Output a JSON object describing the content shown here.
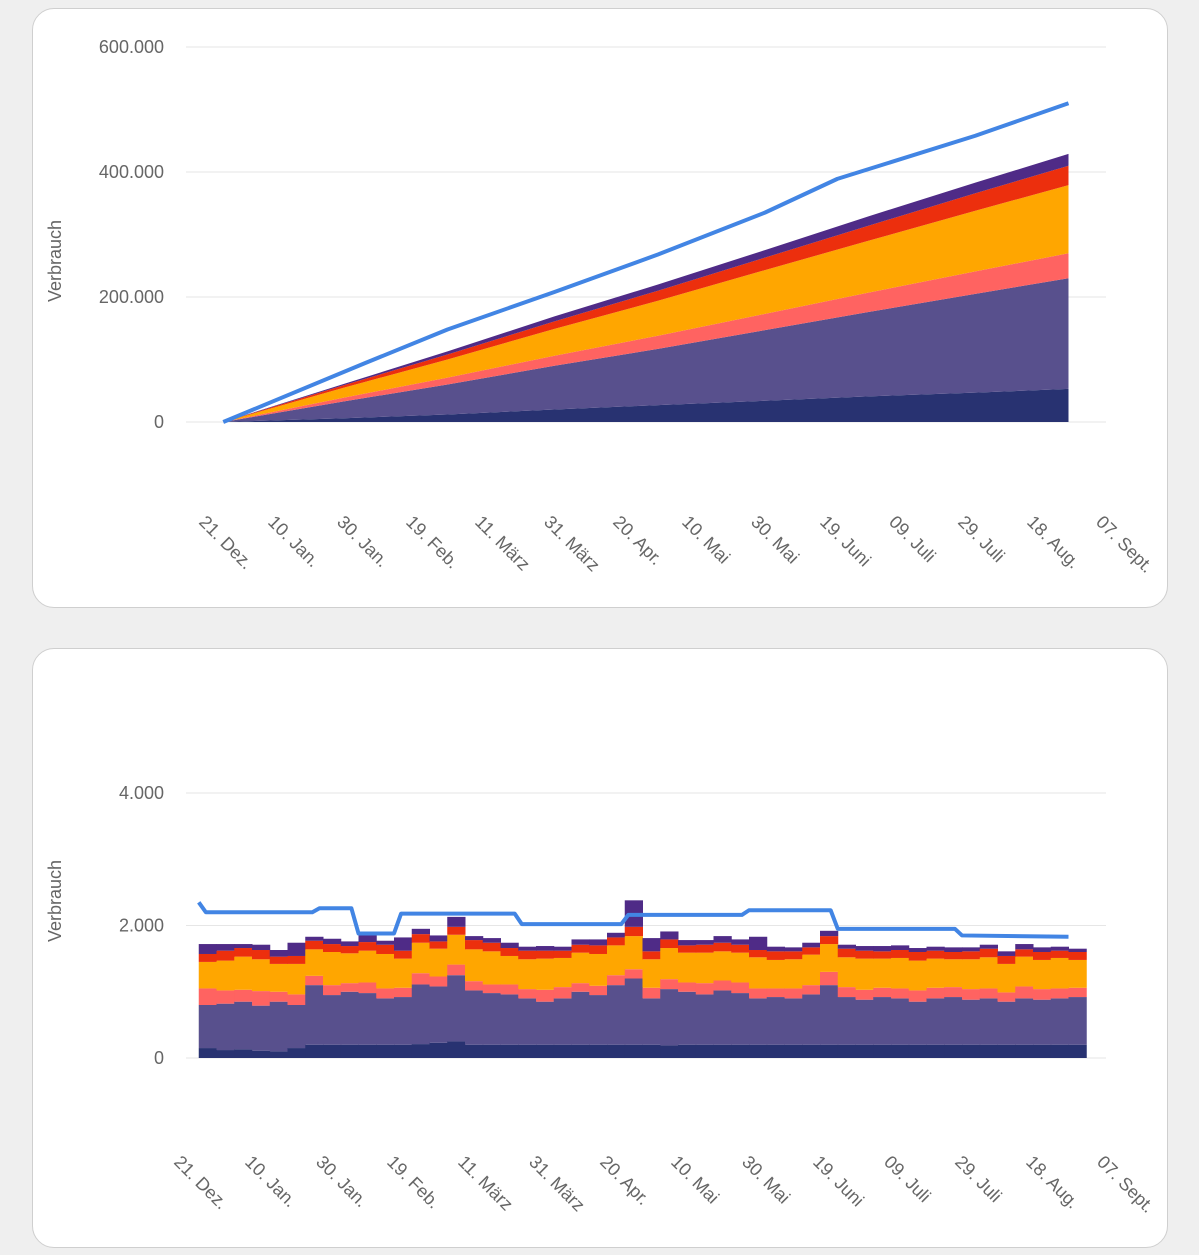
{
  "colors": {
    "navy": "#283271",
    "slate": "#58508d",
    "pink": "#ff6361",
    "orange": "#ffa600",
    "red": "#ec2f0d",
    "purple": "#4f2b87",
    "line": "#4285e4"
  },
  "chart_data": [
    {
      "type": "area",
      "stacked": true,
      "ylabel": "Verbrauch",
      "ylim": [
        0,
        600000
      ],
      "yticks": [
        0,
        200000,
        400000,
        600000
      ],
      "ytick_labels": [
        "0",
        "200.000",
        "400.000",
        "600.000"
      ],
      "xlim": [
        "2020-12-21",
        "2021-09-07"
      ],
      "xtick_labels": [
        "21. Dez.",
        "10. Jan.",
        "30. Jan.",
        "19. Feb.",
        "11. März",
        "31. März",
        "20. Apr.",
        "10. Mai",
        "30. Mai",
        "19. Juni",
        "09. Juli",
        "29. Juli",
        "18. Aug.",
        "07. Sept."
      ],
      "grid": true,
      "x": [
        "2020-12-26",
        "2021-01-30",
        "2021-03-01",
        "2021-04-01",
        "2021-05-01",
        "2021-06-01",
        "2021-07-01",
        "2021-08-01",
        "2021-08-28"
      ],
      "series": [
        {
          "color": "navy",
          "values": [
            0,
            6000,
            12000,
            20000,
            27000,
            34000,
            41000,
            47000,
            53000
          ]
        },
        {
          "color": "slate",
          "values": [
            0,
            27000,
            48000,
            70000,
            90000,
            113000,
            135000,
            158000,
            177000
          ]
        },
        {
          "color": "pink",
          "values": [
            0,
            6000,
            11000,
            16000,
            21000,
            26000,
            31000,
            36000,
            40000
          ]
        },
        {
          "color": "orange",
          "values": [
            0,
            16000,
            29000,
            43000,
            56000,
            70000,
            83000,
            97000,
            109000
          ]
        },
        {
          "color": "red",
          "values": [
            0,
            4000,
            8000,
            12000,
            16000,
            20000,
            24000,
            28000,
            31000
          ]
        },
        {
          "color": "purple",
          "values": [
            0,
            2000,
            5000,
            8000,
            10000,
            12000,
            15000,
            17000,
            19000
          ]
        }
      ],
      "line": {
        "color": "line",
        "x": [
          "2020-12-26",
          "2021-02-05",
          "2021-03-01",
          "2021-04-01",
          "2021-05-01",
          "2021-06-01",
          "2021-06-22",
          "2021-08-01",
          "2021-08-28"
        ],
        "values": [
          0,
          94000,
          148000,
          208000,
          268000,
          335000,
          389000,
          458000,
          510000
        ]
      }
    },
    {
      "type": "bar",
      "stacked": true,
      "ylabel": "Verbrauch",
      "ylim": [
        -800,
        4800
      ],
      "yticks": [
        0,
        2000,
        4000
      ],
      "ytick_labels": [
        "0",
        "2.000",
        "4.000"
      ],
      "xlim": [
        "2020-12-21",
        "2021-09-07"
      ],
      "xtick_labels": [
        "21. Dez.",
        "10. Jan.",
        "30. Jan.",
        "19. Feb.",
        "11. März",
        "31. März",
        "20. Apr.",
        "10. Mai",
        "30. Mai",
        "19. Juni",
        "09. Juli",
        "29. Juli",
        "18. Aug.",
        "07. Sept."
      ],
      "grid": true,
      "start": "2020-12-26",
      "bin_days": 5,
      "series": [
        {
          "color": "navy",
          "values": [
            150,
            120,
            130,
            110,
            100,
            150,
            200,
            200,
            200,
            200,
            200,
            200,
            210,
            230,
            250,
            200,
            200,
            200,
            200,
            200,
            200,
            200,
            200,
            200,
            200,
            200,
            190,
            200,
            200,
            200,
            200,
            200,
            200,
            200,
            200,
            200,
            200,
            200,
            200,
            200,
            200,
            200,
            200,
            200,
            200,
            200,
            200,
            200,
            200,
            200
          ]
        },
        {
          "color": "slate",
          "values": [
            650,
            700,
            720,
            680,
            750,
            650,
            900,
            750,
            800,
            780,
            700,
            720,
            900,
            850,
            1000,
            820,
            780,
            760,
            700,
            650,
            700,
            800,
            750,
            900,
            1000,
            700,
            850,
            800,
            760,
            820,
            780,
            700,
            720,
            700,
            760,
            900,
            720,
            680,
            720,
            700,
            650,
            700,
            720,
            680,
            700,
            650,
            700,
            680,
            700,
            720
          ]
        },
        {
          "color": "pink",
          "values": [
            250,
            200,
            180,
            220,
            150,
            160,
            140,
            150,
            130,
            160,
            150,
            140,
            170,
            150,
            160,
            140,
            130,
            150,
            140,
            180,
            170,
            130,
            140,
            150,
            140,
            160,
            150,
            140,
            170,
            150,
            160,
            150,
            130,
            150,
            140,
            200,
            150,
            150,
            140,
            150,
            170,
            160,
            150,
            160,
            150,
            140,
            180,
            160,
            150,
            140
          ]
        },
        {
          "color": "orange",
          "values": [
            400,
            450,
            500,
            480,
            420,
            460,
            400,
            500,
            450,
            480,
            520,
            440,
            460,
            420,
            450,
            480,
            500,
            430,
            450,
            470,
            440,
            460,
            480,
            450,
            500,
            430,
            470,
            450,
            460,
            440,
            450,
            470,
            430,
            440,
            460,
            420,
            450,
            470,
            440,
            460,
            450,
            440,
            420,
            450,
            470,
            430,
            450,
            440,
            460,
            420
          ]
        },
        {
          "color": "red",
          "values": [
            120,
            150,
            130,
            140,
            110,
            120,
            130,
            120,
            110,
            130,
            140,
            120,
            130,
            110,
            120,
            140,
            130,
            120,
            130,
            120,
            110,
            120,
            130,
            120,
            140,
            120,
            130,
            110,
            120,
            130,
            120,
            110,
            130,
            120,
            110,
            120,
            130,
            120,
            110,
            120,
            130,
            120,
            110,
            120,
            130,
            120,
            110,
            120,
            110,
            120
          ]
        },
        {
          "color": "purple",
          "values": [
            150,
            100,
            60,
            80,
            100,
            200,
            60,
            80,
            70,
            100,
            60,
            200,
            80,
            90,
            150,
            60,
            70,
            80,
            60,
            70,
            60,
            80,
            90,
            70,
            400,
            200,
            120,
            80,
            70,
            100,
            80,
            200,
            70,
            60,
            70,
            80,
            60,
            70,
            80,
            70,
            60,
            60,
            70,
            60,
            60,
            70,
            80,
            70,
            60,
            50
          ]
        }
      ],
      "line": {
        "color": "line",
        "step": true,
        "x": [
          "2020-12-26",
          "2020-12-28",
          "2021-01-27",
          "2021-01-29",
          "2021-02-07",
          "2021-02-09",
          "2021-02-19",
          "2021-02-21",
          "2021-03-25",
          "2021-03-27",
          "2021-04-24",
          "2021-04-26",
          "2021-05-28",
          "2021-05-30",
          "2021-06-22",
          "2021-06-24",
          "2021-07-27",
          "2021-07-29",
          "2021-08-28"
        ],
        "values": [
          2350,
          2200,
          2200,
          2260,
          2260,
          1880,
          1880,
          2180,
          2180,
          2020,
          2020,
          2160,
          2160,
          2230,
          2230,
          1950,
          1950,
          1850,
          1830
        ]
      }
    }
  ]
}
